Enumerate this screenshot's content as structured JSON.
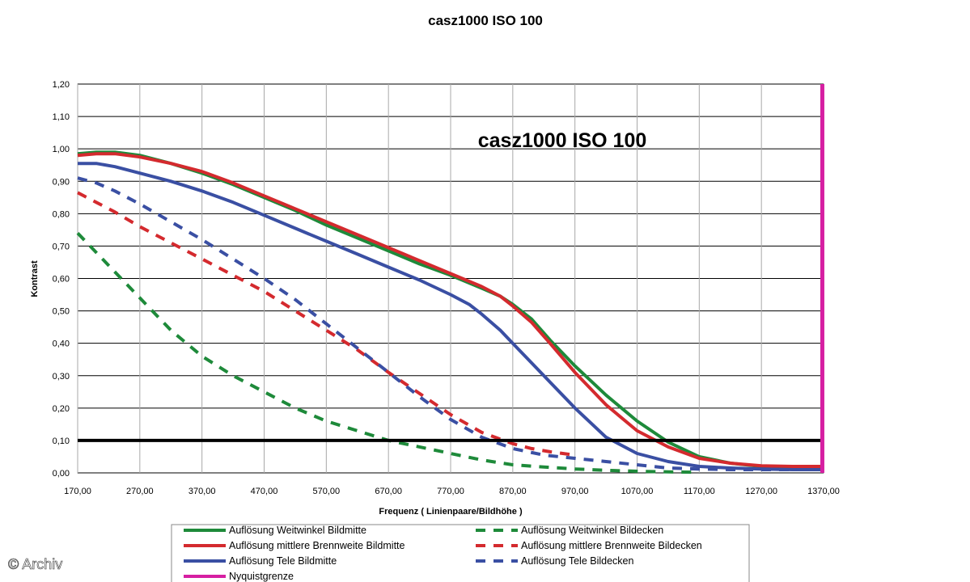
{
  "chart_data": {
    "type": "line",
    "title": "casz1000   ISO 100",
    "inner_title": "casz1000   ISO 100",
    "xlabel": "Frequenz ( Linienpaare/Bildhöhe )",
    "ylabel": "Kontrast",
    "xlim": [
      170,
      1370
    ],
    "ylim": [
      0,
      1.2
    ],
    "x_ticks": [
      "170,00",
      "270,00",
      "370,00",
      "470,00",
      "570,00",
      "670,00",
      "770,00",
      "870,00",
      "970,00",
      "1070,00",
      "1170,00",
      "1270,00",
      "1370,00"
    ],
    "y_ticks": [
      "0,00",
      "0,10",
      "0,20",
      "0,30",
      "0,40",
      "0,50",
      "0,60",
      "0,70",
      "0,80",
      "0,90",
      "1,00",
      "1,10",
      "1,20"
    ],
    "grid": true,
    "reference_line_y": 0.1,
    "nyquist_x": 1368,
    "series": [
      {
        "name": "Auflösung Weitwinkel Bildmitte",
        "color": "#1e8a3a",
        "style": "solid",
        "x": [
          170,
          200,
          230,
          270,
          320,
          370,
          420,
          470,
          520,
          570,
          620,
          670,
          720,
          770,
          820,
          850,
          870,
          900,
          930,
          970,
          1020,
          1070,
          1120,
          1170,
          1220,
          1270,
          1320,
          1370
        ],
        "y": [
          0.985,
          0.99,
          0.99,
          0.98,
          0.955,
          0.925,
          0.89,
          0.85,
          0.81,
          0.765,
          0.725,
          0.685,
          0.645,
          0.61,
          0.57,
          0.545,
          0.52,
          0.475,
          0.41,
          0.33,
          0.24,
          0.16,
          0.095,
          0.05,
          0.03,
          0.02,
          0.018,
          0.018
        ]
      },
      {
        "name": "Auflösung mittlere Brennweite Bildmitte",
        "color": "#d42a2e",
        "style": "solid",
        "x": [
          170,
          200,
          230,
          270,
          320,
          370,
          420,
          470,
          520,
          570,
          620,
          670,
          720,
          770,
          820,
          850,
          870,
          900,
          930,
          970,
          1020,
          1070,
          1120,
          1170,
          1220,
          1270,
          1320,
          1370
        ],
        "y": [
          0.98,
          0.985,
          0.985,
          0.975,
          0.955,
          0.93,
          0.895,
          0.855,
          0.815,
          0.775,
          0.735,
          0.695,
          0.655,
          0.615,
          0.575,
          0.545,
          0.515,
          0.465,
          0.4,
          0.31,
          0.21,
          0.13,
          0.08,
          0.045,
          0.03,
          0.022,
          0.02,
          0.02
        ]
      },
      {
        "name": "Auflösung Tele Bildmitte",
        "color": "#3a4fa3",
        "style": "solid",
        "x": [
          170,
          200,
          230,
          270,
          320,
          370,
          420,
          470,
          520,
          570,
          620,
          670,
          720,
          770,
          800,
          820,
          850,
          870,
          900,
          930,
          970,
          1020,
          1070,
          1120,
          1170,
          1220,
          1270,
          1320,
          1370
        ],
        "y": [
          0.955,
          0.955,
          0.945,
          0.925,
          0.9,
          0.87,
          0.835,
          0.795,
          0.755,
          0.715,
          0.675,
          0.635,
          0.595,
          0.55,
          0.52,
          0.49,
          0.44,
          0.4,
          0.34,
          0.28,
          0.2,
          0.11,
          0.06,
          0.035,
          0.02,
          0.015,
          0.012,
          0.01,
          0.01
        ]
      },
      {
        "name": "Auflösung Weitwinkel Bildecken",
        "color": "#1e8a3a",
        "style": "dashed",
        "x": [
          170,
          200,
          230,
          270,
          320,
          370,
          420,
          470,
          520,
          570,
          620,
          670,
          720,
          770,
          820,
          870,
          920,
          970,
          1020,
          1070,
          1120,
          1170
        ],
        "y": [
          0.74,
          0.68,
          0.62,
          0.54,
          0.44,
          0.36,
          0.3,
          0.25,
          0.2,
          0.16,
          0.13,
          0.1,
          0.08,
          0.06,
          0.04,
          0.025,
          0.018,
          0.012,
          0.008,
          0.005,
          0.003,
          0.002
        ]
      },
      {
        "name": "Auflösung mittlere Brennweite Bildecken",
        "color": "#d42a2e",
        "style": "dashed",
        "x": [
          170,
          200,
          230,
          270,
          320,
          370,
          420,
          470,
          520,
          570,
          620,
          670,
          720,
          770,
          820,
          870,
          900,
          930,
          970
        ],
        "y": [
          0.865,
          0.835,
          0.805,
          0.76,
          0.71,
          0.66,
          0.61,
          0.56,
          0.5,
          0.44,
          0.38,
          0.31,
          0.245,
          0.18,
          0.125,
          0.09,
          0.075,
          0.065,
          0.055
        ]
      },
      {
        "name": "Auflösung Tele Bildecken",
        "color": "#3a4fa3",
        "style": "dashed",
        "x": [
          170,
          200,
          230,
          270,
          320,
          370,
          420,
          470,
          520,
          570,
          620,
          670,
          720,
          770,
          820,
          870,
          920,
          970,
          1020,
          1070,
          1120,
          1170,
          1220,
          1270,
          1320,
          1370
        ],
        "y": [
          0.91,
          0.895,
          0.87,
          0.83,
          0.775,
          0.72,
          0.66,
          0.6,
          0.535,
          0.46,
          0.385,
          0.31,
          0.235,
          0.165,
          0.11,
          0.075,
          0.055,
          0.045,
          0.035,
          0.025,
          0.015,
          0.012,
          0.01,
          0.01,
          0.01,
          0.01
        ]
      },
      {
        "name": "Nyquistgrenze",
        "color": "#d61fa2",
        "style": "solid"
      }
    ]
  },
  "watermark": "© Archiv"
}
